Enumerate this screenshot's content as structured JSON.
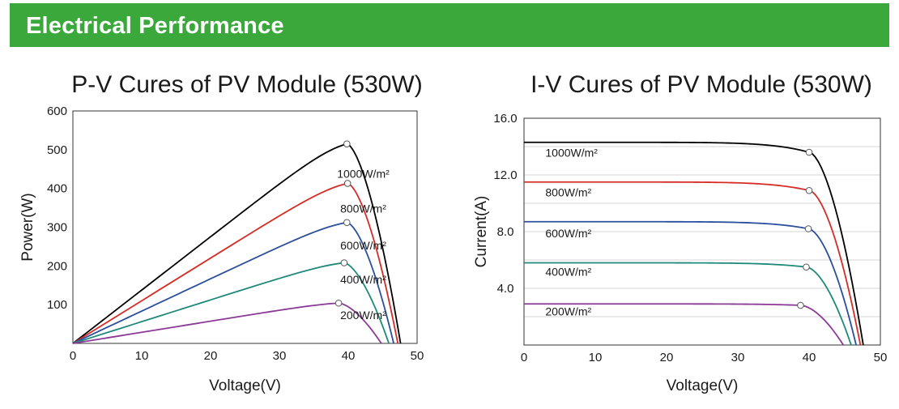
{
  "header": {
    "title": "Electrical Performance",
    "color": "#3aa83a"
  },
  "chart_data": [
    {
      "type": "line",
      "title": "P-V Cures of PV Module (530W)",
      "xlabel": "Voltage(V)",
      "ylabel": "Power(W)",
      "xlim": [
        0,
        50
      ],
      "ylim": [
        0,
        600
      ],
      "xticks": [
        "0",
        "10",
        "20",
        "30",
        "40",
        "50"
      ],
      "yticks": [
        "100",
        "200",
        "300",
        "400",
        "500",
        "600"
      ],
      "grid": false,
      "series": [
        {
          "name": "1000W/m²",
          "color": "#000000",
          "mpp": [
            39.8,
            515
          ],
          "voc": 47.6,
          "label_pos": [
            41,
            428
          ]
        },
        {
          "name": "800W/m²",
          "color": "#d62c26",
          "mpp": [
            39.9,
            413
          ],
          "voc": 47.2,
          "label_pos": [
            41,
            338
          ]
        },
        {
          "name": "600W/m²",
          "color": "#2b4f9e",
          "mpp": [
            39.8,
            312
          ],
          "voc": 46.6,
          "label_pos": [
            41,
            242
          ]
        },
        {
          "name": "400W/m²",
          "color": "#1f8a7b",
          "mpp": [
            39.4,
            208
          ],
          "voc": 45.9,
          "label_pos": [
            41,
            155
          ]
        },
        {
          "name": "200W/m²",
          "color": "#8b3a96",
          "mpp": [
            38.6,
            104
          ],
          "voc": 44.8,
          "label_pos": [
            41,
            63
          ]
        }
      ]
    },
    {
      "type": "line",
      "title": "I-V Cures of PV Module (530W)",
      "xlabel": "Voltage(V)",
      "ylabel": "Current(A)",
      "xlim": [
        0,
        50
      ],
      "ylim": [
        0,
        16
      ],
      "xticks": [
        "0",
        "10",
        "20",
        "30",
        "40",
        "50"
      ],
      "yticks": [
        "4.0",
        "8.0",
        "12.0",
        "16.0"
      ],
      "grid": true,
      "series": [
        {
          "name": "1000W/m²",
          "color": "#000000",
          "isc": 14.3,
          "mpp": [
            40.0,
            13.6
          ],
          "voc": 47.6,
          "label_pos": [
            3,
            13.3
          ]
        },
        {
          "name": "800W/m²",
          "color": "#d62c26",
          "isc": 11.5,
          "mpp": [
            40.0,
            10.9
          ],
          "voc": 47.2,
          "label_pos": [
            3,
            10.5
          ]
        },
        {
          "name": "600W/m²",
          "color": "#2b4f9e",
          "isc": 8.7,
          "mpp": [
            39.9,
            8.2
          ],
          "voc": 46.6,
          "label_pos": [
            3,
            7.6
          ]
        },
        {
          "name": "400W/m²",
          "color": "#1f8a7b",
          "isc": 5.8,
          "mpp": [
            39.6,
            5.5
          ],
          "voc": 45.9,
          "label_pos": [
            3,
            4.9
          ]
        },
        {
          "name": "200W/m²",
          "color": "#8b3a96",
          "isc": 2.9,
          "mpp": [
            38.8,
            2.8
          ],
          "voc": 44.8,
          "label_pos": [
            3,
            2.1
          ]
        }
      ]
    }
  ]
}
